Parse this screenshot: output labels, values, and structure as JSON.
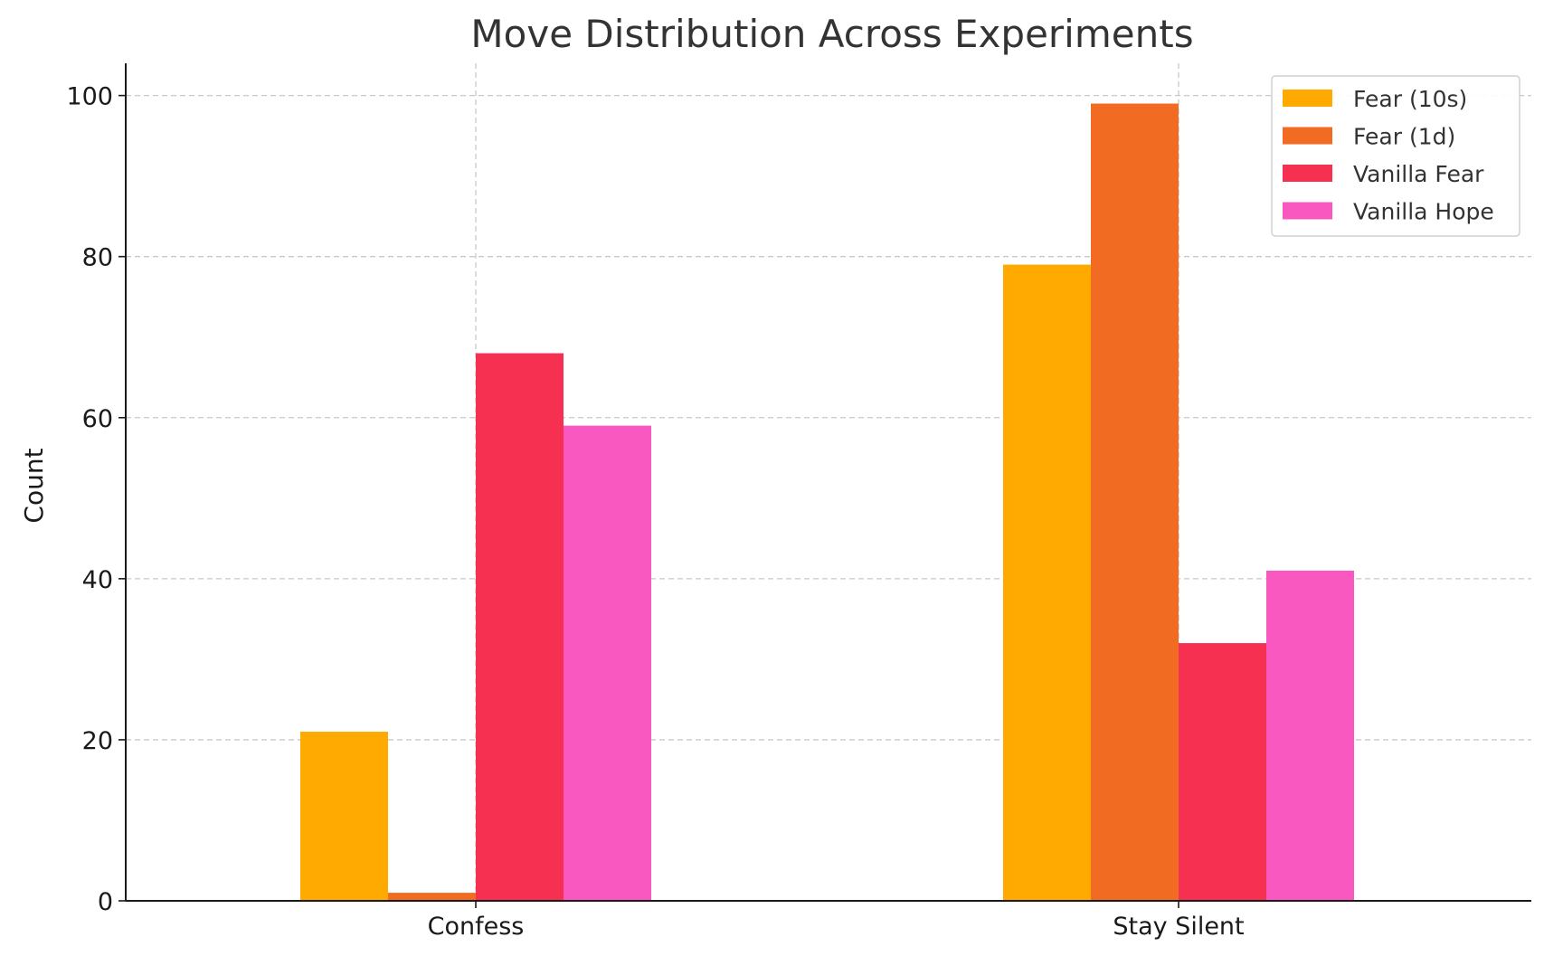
{
  "chart_data": {
    "type": "bar",
    "title": "Move Distribution Across Experiments",
    "xlabel": "",
    "ylabel": "Count",
    "categories": [
      "Confess",
      "Stay Silent"
    ],
    "series": [
      {
        "name": "Fear (10s)",
        "values": [
          21,
          79
        ],
        "color": "#FFAA00"
      },
      {
        "name": "Fear (1d)",
        "values": [
          1,
          99
        ],
        "color": "#F26B22"
      },
      {
        "name": "Vanilla Fear",
        "values": [
          68,
          32
        ],
        "color": "#F53050"
      },
      {
        "name": "Vanilla Hope",
        "values": [
          59,
          41
        ],
        "color": "#F858C0"
      }
    ],
    "ylim": [
      0,
      104
    ],
    "yticks": [
      "0",
      "20",
      "40",
      "60",
      "80",
      "100"
    ],
    "grid": true,
    "legend_position": "top-right"
  }
}
